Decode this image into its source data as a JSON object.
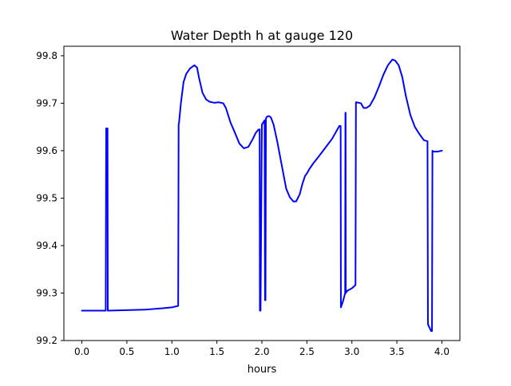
{
  "chart_data": {
    "type": "line",
    "title": "Water Depth h at gauge 120",
    "xlabel": "hours",
    "ylabel": "",
    "xlim": [
      -0.2,
      4.2
    ],
    "ylim": [
      99.2,
      99.82
    ],
    "xticks": [
      0.0,
      0.5,
      1.0,
      1.5,
      2.0,
      2.5,
      3.0,
      3.5,
      4.0
    ],
    "xtick_labels": [
      "0.0",
      "0.5",
      "1.0",
      "1.5",
      "2.0",
      "2.5",
      "3.0",
      "3.5",
      "4.0"
    ],
    "yticks": [
      99.2,
      99.3,
      99.4,
      99.5,
      99.6,
      99.7,
      99.8
    ],
    "ytick_labels": [
      "99.2",
      "99.3",
      "99.4",
      "99.5",
      "99.6",
      "99.7",
      "99.8"
    ],
    "grid": false,
    "legend": false,
    "series": [
      {
        "color": "#0000ff",
        "x": [
          0.0,
          0.265,
          0.27,
          0.285,
          0.288,
          0.29,
          0.5,
          0.7,
          0.9,
          1.0,
          1.07,
          1.075,
          1.08,
          1.1,
          1.13,
          1.16,
          1.2,
          1.25,
          1.28,
          1.3,
          1.34,
          1.38,
          1.42,
          1.47,
          1.52,
          1.57,
          1.6,
          1.65,
          1.7,
          1.75,
          1.8,
          1.85,
          1.9,
          1.93,
          1.96,
          1.975,
          1.978,
          1.985,
          2.0,
          2.03,
          2.035,
          2.04,
          2.045,
          2.05,
          2.06,
          2.08,
          2.1,
          2.13,
          2.17,
          2.22,
          2.27,
          2.31,
          2.35,
          2.38,
          2.42,
          2.45,
          2.48,
          2.5,
          2.53,
          2.57,
          2.62,
          2.7,
          2.78,
          2.86,
          2.875,
          2.878,
          2.9,
          2.925,
          2.928,
          2.93,
          2.932,
          2.95,
          3.0,
          3.04,
          3.045,
          3.05,
          3.1,
          3.13,
          3.16,
          3.2,
          3.25,
          3.3,
          3.35,
          3.4,
          3.45,
          3.48,
          3.52,
          3.56,
          3.6,
          3.65,
          3.7,
          3.75,
          3.8,
          3.84,
          3.845,
          3.85,
          3.88,
          3.89,
          3.895,
          3.9,
          3.95,
          4.0
        ],
        "y": [
          99.263,
          99.263,
          99.647,
          99.647,
          99.263,
          99.263,
          99.264,
          99.265,
          99.268,
          99.27,
          99.273,
          99.655,
          99.66,
          99.7,
          99.745,
          99.762,
          99.773,
          99.78,
          99.775,
          99.755,
          99.722,
          99.708,
          99.703,
          99.701,
          99.702,
          99.7,
          99.69,
          99.66,
          99.638,
          99.615,
          99.605,
          99.608,
          99.625,
          99.637,
          99.644,
          99.645,
          99.263,
          99.263,
          99.655,
          99.664,
          99.285,
          99.285,
          99.667,
          99.67,
          99.672,
          99.673,
          99.67,
          99.655,
          99.62,
          99.57,
          99.52,
          99.502,
          99.493,
          99.493,
          99.508,
          99.53,
          99.547,
          99.552,
          99.562,
          99.573,
          99.585,
          99.605,
          99.625,
          99.652,
          99.652,
          99.27,
          99.282,
          99.3,
          99.68,
          99.68,
          99.3,
          99.305,
          99.31,
          99.317,
          99.702,
          99.702,
          99.7,
          99.69,
          99.69,
          99.695,
          99.712,
          99.735,
          99.76,
          99.78,
          99.792,
          99.79,
          99.78,
          99.755,
          99.715,
          99.675,
          99.65,
          99.635,
          99.622,
          99.62,
          99.235,
          99.232,
          99.22,
          99.22,
          99.6,
          99.598,
          99.598,
          99.6
        ]
      }
    ]
  }
}
